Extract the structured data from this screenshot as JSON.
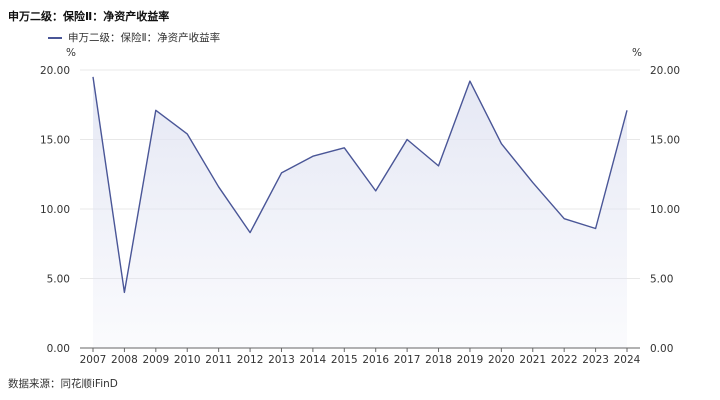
{
  "title": "申万二级：保险Ⅱ：净资产收益率",
  "source": "数据来源：同花顺iFinD",
  "colors": {
    "line": "#4a5697",
    "area": "#e2e5f3",
    "grid": "#e8e8e8",
    "axis": "#666666"
  },
  "chart_data": {
    "type": "area",
    "title": "申万二级：保险Ⅱ：净资产收益率",
    "x": [
      "2007",
      "2008",
      "2009",
      "2010",
      "2011",
      "2012",
      "2013",
      "2014",
      "2015",
      "2016",
      "2017",
      "2018",
      "2019",
      "2020",
      "2021",
      "2022",
      "2023",
      "2024"
    ],
    "series": [
      {
        "name": "申万二级：保险Ⅱ：净资产收益率",
        "values": [
          19.5,
          4.0,
          17.1,
          15.4,
          11.6,
          8.3,
          12.6,
          13.8,
          14.4,
          11.3,
          15.0,
          13.1,
          19.2,
          14.7,
          11.9,
          9.3,
          8.6,
          17.1
        ]
      }
    ],
    "y_unit_left": "%",
    "y_unit_right": "%",
    "ylim": [
      0,
      20
    ],
    "yticks": [
      "0.00",
      "5.00",
      "10.00",
      "15.00",
      "20.00"
    ],
    "grid": true,
    "legend": "top-left"
  }
}
